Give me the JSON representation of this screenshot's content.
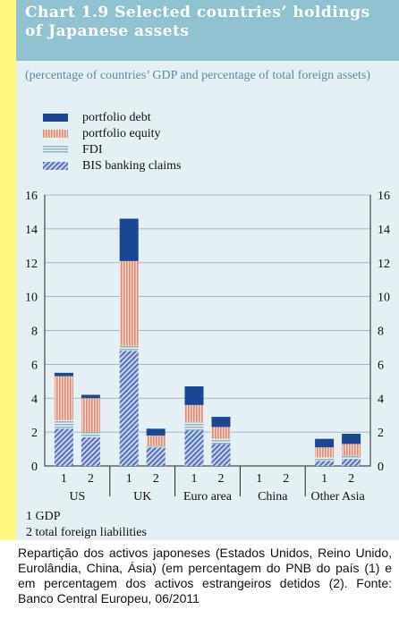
{
  "header": {
    "title_line1": "Chart 1.9 Selected countries’ holdings",
    "title_line2": "of Japanese assets",
    "subtitle": "(percentage of countries’ GDP and percentage of total foreign assets)"
  },
  "colors": {
    "header_bg": "#8fc3cf",
    "panel_bg": "#e5f0f4",
    "portfolio_debt": "#1a4796",
    "portfolio_equity": "#e08c74",
    "fdi": "#8fb3bf",
    "bis_banking_claims": "#5571b8"
  },
  "chart_data": {
    "type": "bar",
    "stacked": true,
    "ylim": [
      0,
      16
    ],
    "yticks": [
      0,
      2,
      4,
      6,
      8,
      10,
      12,
      14,
      16
    ],
    "grid": true,
    "legend_position": "top-left",
    "groups": [
      "US",
      "UK",
      "Euro area",
      "China",
      "Other Asia"
    ],
    "bar_labels": [
      "1",
      "2"
    ],
    "categories": [
      "US 1",
      "US 2",
      "UK 1",
      "UK 2",
      "Euro area 1",
      "Euro area 2",
      "China 1",
      "China 2",
      "Other Asia 1",
      "Other Asia 2"
    ],
    "series": [
      {
        "name": "BIS banking claims",
        "key": "bis_banking_claims",
        "values": [
          2.2,
          1.7,
          6.8,
          1.1,
          2.1,
          1.3,
          0,
          0,
          0.3,
          0.4
        ]
      },
      {
        "name": "FDI",
        "key": "fdi",
        "values": [
          0.5,
          0.3,
          0.3,
          0.1,
          0.5,
          0.3,
          0,
          0,
          0.2,
          0.2
        ]
      },
      {
        "name": "portfolio equity",
        "key": "portfolio_equity",
        "values": [
          2.6,
          2.0,
          5.0,
          0.6,
          1.0,
          0.7,
          0,
          0,
          0.6,
          0.7
        ]
      },
      {
        "name": "portfolio debt",
        "key": "portfolio_debt",
        "values": [
          0.2,
          0.2,
          2.5,
          0.4,
          1.1,
          0.6,
          0,
          0,
          0.5,
          0.6
        ]
      }
    ],
    "legend_order": [
      "portfolio debt",
      "portfolio equity",
      "FDI",
      "BIS banking claims"
    ]
  },
  "notes": [
    "1  GDP",
    "2  total foreign liabilities"
  ],
  "footer": "Repartição dos activos japoneses (Estados Unidos, Reino Unido, Eurolândia, China, Ásia) (em percentagem do PNB do país (1) e em percentagem dos activos estrangeiros detidos (2). Fonte: Banco Central Europeu, 06/2011"
}
